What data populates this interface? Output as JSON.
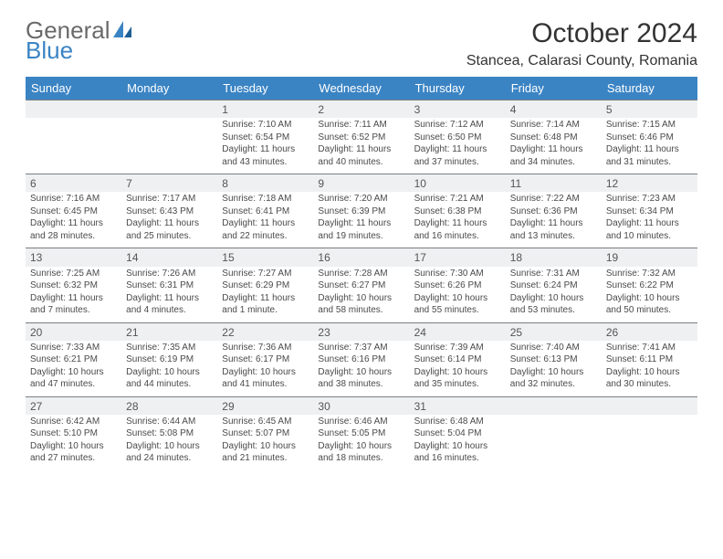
{
  "logo": {
    "word1": "General",
    "word2": "Blue"
  },
  "title": "October 2024",
  "location": "Stancea, Calarasi County, Romania",
  "colors": {
    "header_bg": "#3b84c4",
    "header_text": "#ffffff",
    "shade_bg": "#eef0f1",
    "rule": "#7a7f84",
    "body_text": "#4a4a4a",
    "logo_gray": "#6a6a6a",
    "logo_blue": "#3b84c4"
  },
  "weekdays": [
    "Sunday",
    "Monday",
    "Tuesday",
    "Wednesday",
    "Thursday",
    "Friday",
    "Saturday"
  ],
  "weeks": [
    [
      null,
      null,
      {
        "n": "1",
        "sr": "Sunrise: 7:10 AM",
        "ss": "Sunset: 6:54 PM",
        "dl1": "Daylight: 11 hours",
        "dl2": "and 43 minutes."
      },
      {
        "n": "2",
        "sr": "Sunrise: 7:11 AM",
        "ss": "Sunset: 6:52 PM",
        "dl1": "Daylight: 11 hours",
        "dl2": "and 40 minutes."
      },
      {
        "n": "3",
        "sr": "Sunrise: 7:12 AM",
        "ss": "Sunset: 6:50 PM",
        "dl1": "Daylight: 11 hours",
        "dl2": "and 37 minutes."
      },
      {
        "n": "4",
        "sr": "Sunrise: 7:14 AM",
        "ss": "Sunset: 6:48 PM",
        "dl1": "Daylight: 11 hours",
        "dl2": "and 34 minutes."
      },
      {
        "n": "5",
        "sr": "Sunrise: 7:15 AM",
        "ss": "Sunset: 6:46 PM",
        "dl1": "Daylight: 11 hours",
        "dl2": "and 31 minutes."
      }
    ],
    [
      {
        "n": "6",
        "sr": "Sunrise: 7:16 AM",
        "ss": "Sunset: 6:45 PM",
        "dl1": "Daylight: 11 hours",
        "dl2": "and 28 minutes."
      },
      {
        "n": "7",
        "sr": "Sunrise: 7:17 AM",
        "ss": "Sunset: 6:43 PM",
        "dl1": "Daylight: 11 hours",
        "dl2": "and 25 minutes."
      },
      {
        "n": "8",
        "sr": "Sunrise: 7:18 AM",
        "ss": "Sunset: 6:41 PM",
        "dl1": "Daylight: 11 hours",
        "dl2": "and 22 minutes."
      },
      {
        "n": "9",
        "sr": "Sunrise: 7:20 AM",
        "ss": "Sunset: 6:39 PM",
        "dl1": "Daylight: 11 hours",
        "dl2": "and 19 minutes."
      },
      {
        "n": "10",
        "sr": "Sunrise: 7:21 AM",
        "ss": "Sunset: 6:38 PM",
        "dl1": "Daylight: 11 hours",
        "dl2": "and 16 minutes."
      },
      {
        "n": "11",
        "sr": "Sunrise: 7:22 AM",
        "ss": "Sunset: 6:36 PM",
        "dl1": "Daylight: 11 hours",
        "dl2": "and 13 minutes."
      },
      {
        "n": "12",
        "sr": "Sunrise: 7:23 AM",
        "ss": "Sunset: 6:34 PM",
        "dl1": "Daylight: 11 hours",
        "dl2": "and 10 minutes."
      }
    ],
    [
      {
        "n": "13",
        "sr": "Sunrise: 7:25 AM",
        "ss": "Sunset: 6:32 PM",
        "dl1": "Daylight: 11 hours",
        "dl2": "and 7 minutes."
      },
      {
        "n": "14",
        "sr": "Sunrise: 7:26 AM",
        "ss": "Sunset: 6:31 PM",
        "dl1": "Daylight: 11 hours",
        "dl2": "and 4 minutes."
      },
      {
        "n": "15",
        "sr": "Sunrise: 7:27 AM",
        "ss": "Sunset: 6:29 PM",
        "dl1": "Daylight: 11 hours",
        "dl2": "and 1 minute."
      },
      {
        "n": "16",
        "sr": "Sunrise: 7:28 AM",
        "ss": "Sunset: 6:27 PM",
        "dl1": "Daylight: 10 hours",
        "dl2": "and 58 minutes."
      },
      {
        "n": "17",
        "sr": "Sunrise: 7:30 AM",
        "ss": "Sunset: 6:26 PM",
        "dl1": "Daylight: 10 hours",
        "dl2": "and 55 minutes."
      },
      {
        "n": "18",
        "sr": "Sunrise: 7:31 AM",
        "ss": "Sunset: 6:24 PM",
        "dl1": "Daylight: 10 hours",
        "dl2": "and 53 minutes."
      },
      {
        "n": "19",
        "sr": "Sunrise: 7:32 AM",
        "ss": "Sunset: 6:22 PM",
        "dl1": "Daylight: 10 hours",
        "dl2": "and 50 minutes."
      }
    ],
    [
      {
        "n": "20",
        "sr": "Sunrise: 7:33 AM",
        "ss": "Sunset: 6:21 PM",
        "dl1": "Daylight: 10 hours",
        "dl2": "and 47 minutes."
      },
      {
        "n": "21",
        "sr": "Sunrise: 7:35 AM",
        "ss": "Sunset: 6:19 PM",
        "dl1": "Daylight: 10 hours",
        "dl2": "and 44 minutes."
      },
      {
        "n": "22",
        "sr": "Sunrise: 7:36 AM",
        "ss": "Sunset: 6:17 PM",
        "dl1": "Daylight: 10 hours",
        "dl2": "and 41 minutes."
      },
      {
        "n": "23",
        "sr": "Sunrise: 7:37 AM",
        "ss": "Sunset: 6:16 PM",
        "dl1": "Daylight: 10 hours",
        "dl2": "and 38 minutes."
      },
      {
        "n": "24",
        "sr": "Sunrise: 7:39 AM",
        "ss": "Sunset: 6:14 PM",
        "dl1": "Daylight: 10 hours",
        "dl2": "and 35 minutes."
      },
      {
        "n": "25",
        "sr": "Sunrise: 7:40 AM",
        "ss": "Sunset: 6:13 PM",
        "dl1": "Daylight: 10 hours",
        "dl2": "and 32 minutes."
      },
      {
        "n": "26",
        "sr": "Sunrise: 7:41 AM",
        "ss": "Sunset: 6:11 PM",
        "dl1": "Daylight: 10 hours",
        "dl2": "and 30 minutes."
      }
    ],
    [
      {
        "n": "27",
        "sr": "Sunrise: 6:42 AM",
        "ss": "Sunset: 5:10 PM",
        "dl1": "Daylight: 10 hours",
        "dl2": "and 27 minutes."
      },
      {
        "n": "28",
        "sr": "Sunrise: 6:44 AM",
        "ss": "Sunset: 5:08 PM",
        "dl1": "Daylight: 10 hours",
        "dl2": "and 24 minutes."
      },
      {
        "n": "29",
        "sr": "Sunrise: 6:45 AM",
        "ss": "Sunset: 5:07 PM",
        "dl1": "Daylight: 10 hours",
        "dl2": "and 21 minutes."
      },
      {
        "n": "30",
        "sr": "Sunrise: 6:46 AM",
        "ss": "Sunset: 5:05 PM",
        "dl1": "Daylight: 10 hours",
        "dl2": "and 18 minutes."
      },
      {
        "n": "31",
        "sr": "Sunrise: 6:48 AM",
        "ss": "Sunset: 5:04 PM",
        "dl1": "Daylight: 10 hours",
        "dl2": "and 16 minutes."
      },
      null,
      null
    ]
  ]
}
